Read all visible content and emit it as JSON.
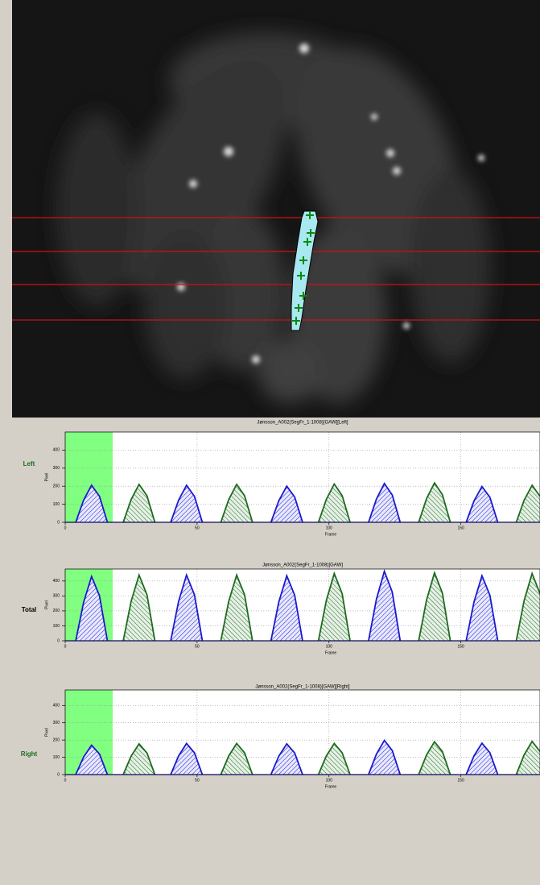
{
  "chart_data": [
    {
      "type": "line",
      "title": "Jønsson_A002(SegFr_1-1008)[GAW][Left]",
      "side_label": "Left",
      "side_label_color": "#1e6b1e",
      "xlabel": "Frame",
      "ylabel": "Pixel",
      "xlim": [
        0,
        180
      ],
      "xticks": [
        0,
        50,
        100,
        150
      ],
      "ylim": [
        0,
        500
      ],
      "yticks": [
        0,
        100,
        200,
        300,
        400
      ],
      "grid": true,
      "highlight": [
        0,
        18
      ],
      "highlight_color": "#80ff80",
      "series": [
        {
          "color": "#1a1acc",
          "x": [
            4,
            7,
            10,
            13,
            16,
            null,
            40,
            43,
            46,
            49,
            52,
            null,
            78,
            81,
            84,
            87,
            90,
            null,
            115,
            118,
            121,
            124,
            127,
            null,
            152,
            155,
            158,
            161,
            164
          ],
          "values": [
            0,
            123,
            205,
            144,
            0,
            null,
            0,
            123,
            205,
            144,
            0,
            null,
            0,
            120,
            200,
            140,
            0,
            null,
            0,
            129,
            215,
            151,
            0,
            null,
            0,
            119,
            198,
            139,
            0
          ]
        },
        {
          "color": "#1e6b1e",
          "x": [
            22,
            25,
            28,
            31,
            34,
            null,
            59,
            62,
            65,
            68,
            71,
            null,
            96,
            99,
            102,
            105,
            108,
            null,
            134,
            137,
            140,
            143,
            146,
            null,
            171,
            174,
            177,
            180
          ],
          "values": [
            0,
            126,
            210,
            147,
            0,
            null,
            0,
            126,
            210,
            147,
            0,
            null,
            0,
            127,
            212,
            148,
            0,
            null,
            0,
            131,
            218,
            153,
            0,
            null,
            0,
            123,
            205,
            144
          ]
        }
      ]
    },
    {
      "type": "line",
      "title": "Jønsson_A002(SegFr_1-1008)[GAW]",
      "side_label": "Total",
      "side_label_color": "#000000",
      "xlabel": "Frame",
      "ylabel": "Pixel",
      "xlim": [
        0,
        180
      ],
      "xticks": [
        0,
        50,
        100,
        150
      ],
      "ylim": [
        0,
        480
      ],
      "yticks": [
        0,
        100,
        200,
        300,
        400
      ],
      "grid": true,
      "highlight": [
        0,
        18
      ],
      "highlight_color": "#80ff80",
      "series": [
        {
          "color": "#1a1acc",
          "x": [
            4,
            7,
            10,
            13,
            16,
            null,
            40,
            43,
            46,
            49,
            52,
            null,
            78,
            81,
            84,
            87,
            90,
            null,
            115,
            118,
            121,
            124,
            127,
            null,
            152,
            155,
            158,
            161,
            164
          ],
          "values": [
            0,
            258,
            430,
            301,
            0,
            null,
            0,
            264,
            440,
            308,
            0,
            null,
            0,
            261,
            435,
            305,
            0,
            null,
            0,
            279,
            465,
            326,
            0,
            null,
            0,
            261,
            435,
            305,
            0
          ]
        },
        {
          "color": "#1e6b1e",
          "x": [
            22,
            25,
            28,
            31,
            34,
            null,
            59,
            62,
            65,
            68,
            71,
            null,
            96,
            99,
            102,
            105,
            108,
            null,
            134,
            137,
            140,
            143,
            146,
            null,
            171,
            174,
            177,
            180
          ],
          "values": [
            0,
            264,
            440,
            308,
            0,
            null,
            0,
            264,
            440,
            308,
            0,
            null,
            0,
            270,
            450,
            315,
            0,
            null,
            0,
            273,
            455,
            319,
            0,
            null,
            0,
            270,
            450,
            315
          ]
        }
      ]
    },
    {
      "type": "line",
      "title": "Jønsson_A002(SegFr_1-1008)[GAW][Right]",
      "side_label": "Right",
      "side_label_color": "#1e6b1e",
      "xlabel": "Frame",
      "ylabel": "Pixel",
      "xlim": [
        0,
        180
      ],
      "xticks": [
        0,
        50,
        100,
        150
      ],
      "ylim": [
        0,
        490
      ],
      "yticks": [
        0,
        100,
        200,
        300,
        400
      ],
      "grid": true,
      "highlight": [
        0,
        18
      ],
      "highlight_color": "#80ff80",
      "series": [
        {
          "color": "#1a1acc",
          "x": [
            4,
            7,
            10,
            13,
            16,
            null,
            40,
            43,
            46,
            49,
            52,
            null,
            78,
            81,
            84,
            87,
            90,
            null,
            115,
            118,
            121,
            124,
            127,
            null,
            152,
            155,
            158,
            161,
            164
          ],
          "values": [
            0,
            102,
            170,
            119,
            0,
            null,
            0,
            108,
            180,
            126,
            0,
            null,
            0,
            107,
            178,
            125,
            0,
            null,
            0,
            119,
            198,
            139,
            0,
            null,
            0,
            109,
            182,
            127,
            0
          ]
        },
        {
          "color": "#1e6b1e",
          "x": [
            22,
            25,
            28,
            31,
            34,
            null,
            59,
            62,
            65,
            68,
            71,
            null,
            96,
            99,
            102,
            105,
            108,
            null,
            134,
            137,
            140,
            143,
            146,
            null,
            171,
            174,
            177,
            180
          ],
          "values": [
            0,
            107,
            178,
            125,
            0,
            null,
            0,
            108,
            180,
            126,
            0,
            null,
            0,
            108,
            180,
            126,
            0,
            null,
            0,
            114,
            190,
            133,
            0,
            null,
            0,
            115,
            192,
            134
          ]
        }
      ]
    }
  ]
}
